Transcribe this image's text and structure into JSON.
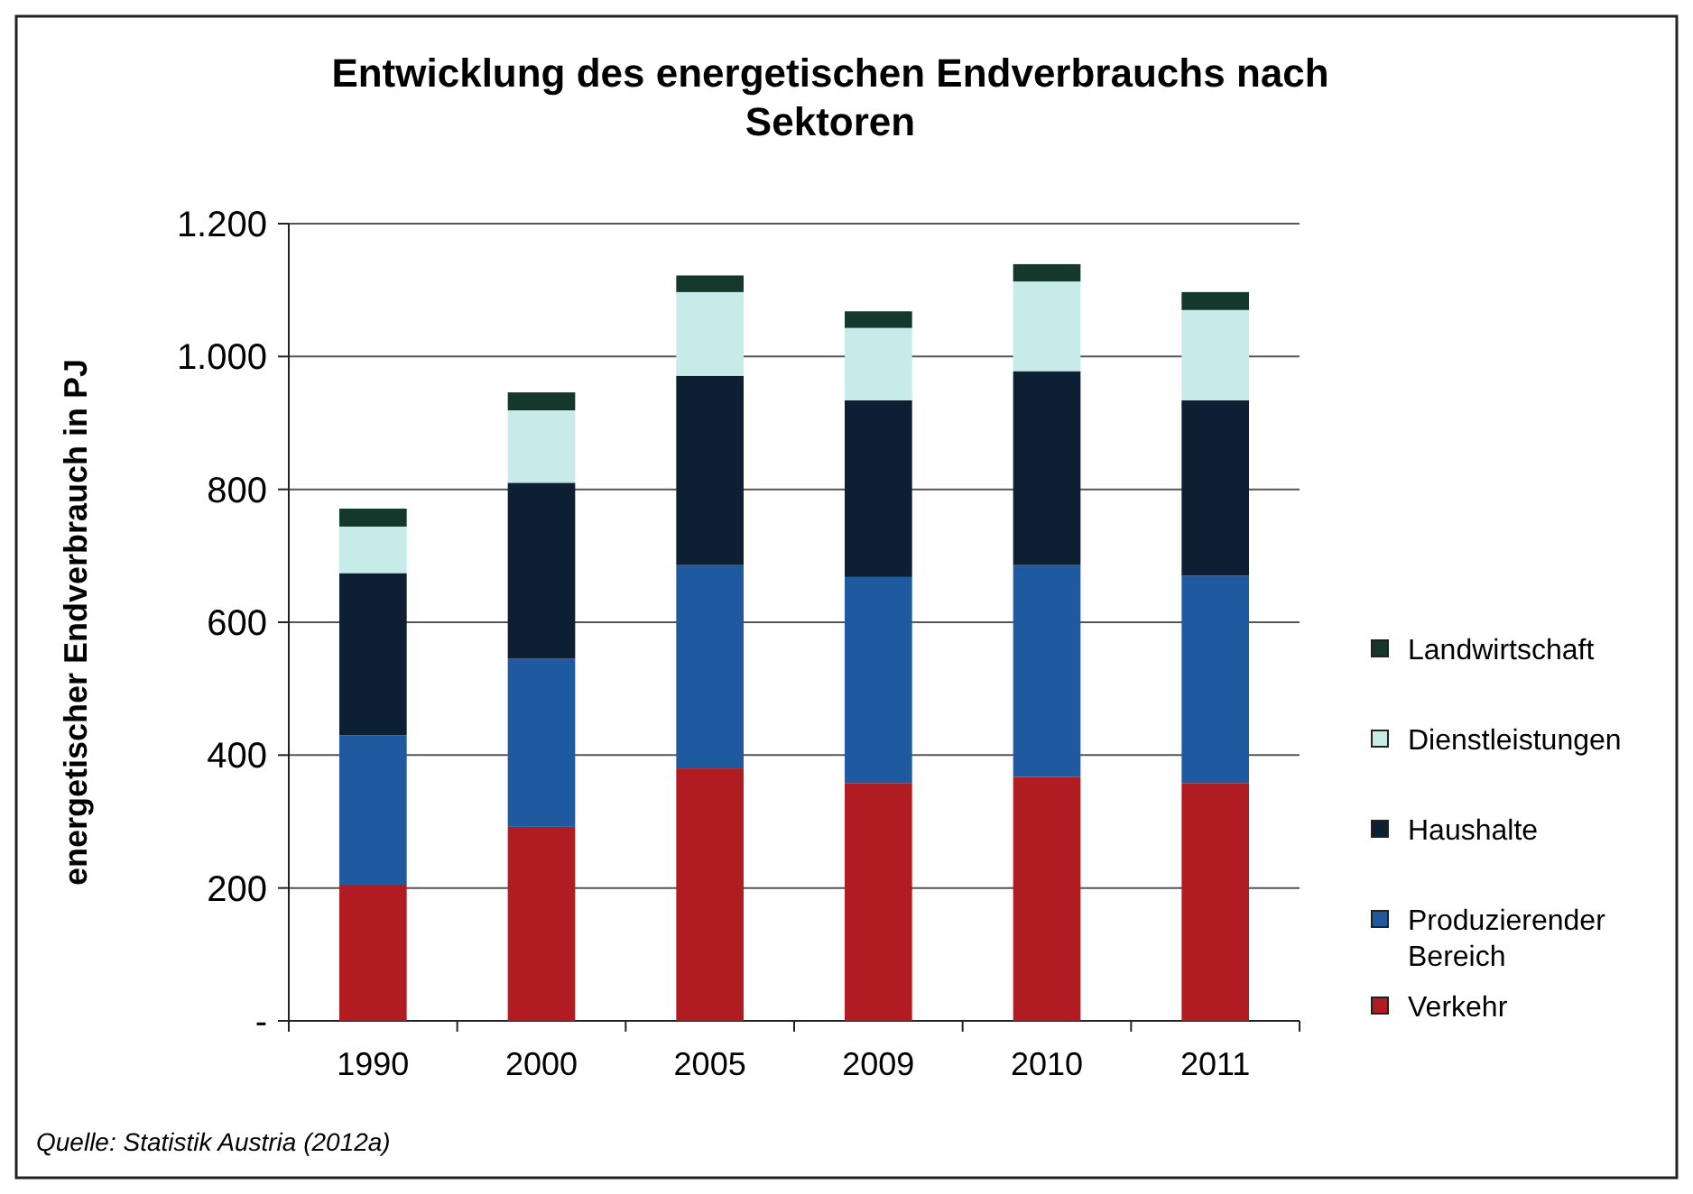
{
  "chart_data": {
    "type": "bar",
    "title": "Entwicklung des energetischen Endverbrauchs nach Sektoren",
    "ylabel": "energetischer Endverbrauch in PJ",
    "categories": [
      "1990",
      "2000",
      "2005",
      "2009",
      "2010",
      "2011"
    ],
    "stacked": true,
    "series": [
      {
        "name": "Verkehr",
        "color": "#b01c22",
        "values": [
          205,
          292,
          380,
          358,
          367,
          358
        ]
      },
      {
        "name": "Produzierender Bereich",
        "color": "#1f5aa0",
        "values": [
          225,
          253,
          306,
          310,
          319,
          312
        ]
      },
      {
        "name": "Haushalte",
        "color": "#0d1f33",
        "values": [
          244,
          265,
          285,
          266,
          292,
          264
        ]
      },
      {
        "name": "Dienstleistungen",
        "color": "#c6ebe8",
        "values": [
          70,
          109,
          126,
          109,
          135,
          136
        ]
      },
      {
        "name": "Landwirtschaft",
        "color": "#14382c",
        "values": [
          27,
          27,
          25,
          25,
          26,
          27
        ]
      }
    ],
    "ylim": [
      0,
      1200
    ],
    "yticks": [
      {
        "value": 0,
        "label": "-"
      },
      200,
      400,
      600,
      800,
      {
        "value": 1000,
        "label": "1.000"
      },
      {
        "value": 1200,
        "label": "1.200"
      }
    ],
    "grid": "y",
    "legend": "right",
    "annotations": [
      "Quelle: Statistik Austria (2012a)"
    ]
  }
}
